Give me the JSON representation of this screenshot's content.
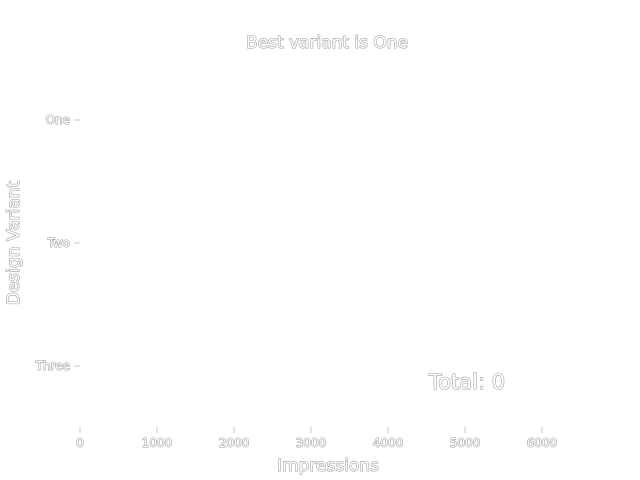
{
  "chart_data": {
    "type": "bar",
    "orientation": "horizontal",
    "title": "Best variant is One",
    "xlabel": "Impressions",
    "ylabel": "Design Variant",
    "categories": [
      "One",
      "Two",
      "Three"
    ],
    "series": [
      {
        "values": [
          0,
          0,
          0
        ]
      }
    ],
    "xlim": [
      0,
      6000
    ],
    "xticks": [
      0,
      1000,
      2000,
      3000,
      4000,
      5000,
      6000
    ],
    "grid": false,
    "annotation": "Total: 0",
    "colors": {
      "text_fill": "#ffffff",
      "text_outline": "#9a9a9a",
      "tick": "#c8c8c8"
    }
  }
}
